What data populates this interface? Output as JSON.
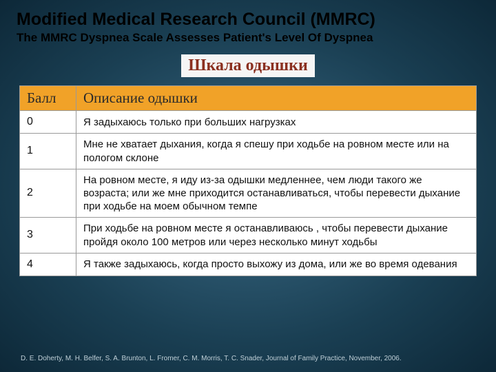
{
  "header": {
    "title": "Modified Medical Research Council (MMRC)",
    "subtitle": "The MMRC Dyspnea Scale Assesses Patient's Level Of Dyspnea",
    "scale_label": "Шкала одышки"
  },
  "table": {
    "col_grade": "Балл",
    "col_desc": "Описание одышки",
    "rows": [
      {
        "grade": "0",
        "desc": "Я  задыхаюсь  только при  больших нагрузках"
      },
      {
        "grade": "1",
        "desc": "Мне не хватает дыхания, когда я спешу при ходьбе на ровном месте или   на пологом склоне"
      },
      {
        "grade": "2",
        "desc": "На ровном месте, я иду из-за  одышки медленнее, чем люди такого же возраста; или же мне приходится останавливаться, чтобы перевести дыхание при ходьбе на моем  обычном темпе"
      },
      {
        "grade": "3",
        "desc": "При ходьбе на ровном месте я останавливаюсь , чтобы перевести дыхание пройдя около 100 метров или через несколько минут  ходьбы"
      },
      {
        "grade": "4",
        "desc": "Я также задыхаюсь, когда просто выхожу из дома, или  же во время одевания"
      }
    ]
  },
  "citation": "D. E. Doherty,  M. H. Belfer,  S. A. Brunton,  L. Fromer,  C. M. Morris,  T. C. Snader,  Journal of Family Practice, November, 2006.",
  "style": {
    "header_bg": "#f1a228",
    "scale_label_color": "#8b3020",
    "scale_label_bg": "#f5f5f5",
    "table_border": "#999999",
    "title_fontsize": 25,
    "subtitle_fontsize": 17,
    "cell_fontsize": 15,
    "header_fontsize": 21
  }
}
